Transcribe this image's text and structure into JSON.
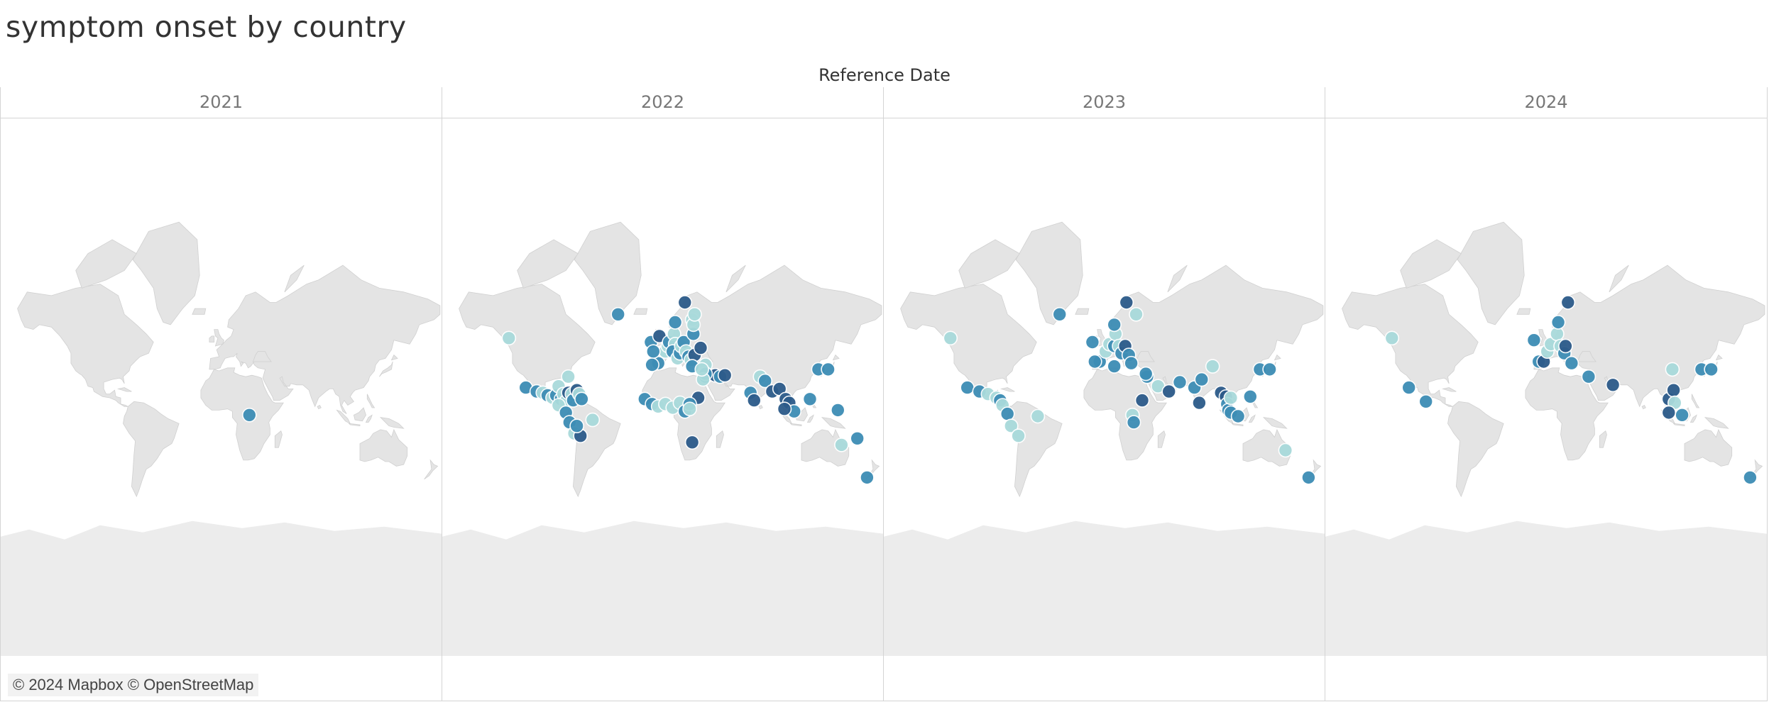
{
  "title": "symptom onset by country",
  "column_header": "Reference Date",
  "attribution": "© 2024 Mapbox © OpenStreetMap",
  "colors": {
    "land": "#e4e4e4",
    "ocean": "#ffffff",
    "antarctica": "#ececec",
    "marker_dark": "#2c5b8a",
    "marker_mid": "#3d8db5",
    "marker_light": "#a9dadb",
    "marker_stroke": "#ffffff"
  },
  "chart_data": {
    "type": "map",
    "projection": "mercator",
    "panels": [
      {
        "year": "2021",
        "points": [
          {
            "lon": 23,
            "lat": 1,
            "shade": "mid"
          }
        ]
      },
      {
        "year": "2022",
        "points": [
          {
            "lon": -127,
            "lat": 54,
            "shade": "light"
          },
          {
            "lon": -37,
            "lat": 64,
            "shade": "mid"
          },
          {
            "lon": -113,
            "lat": 23,
            "shade": "mid"
          },
          {
            "lon": -104,
            "lat": 20,
            "shade": "mid"
          },
          {
            "lon": -99,
            "lat": 19,
            "shade": "light"
          },
          {
            "lon": -95,
            "lat": 17,
            "shade": "mid"
          },
          {
            "lon": -91,
            "lat": 15,
            "shade": "light"
          },
          {
            "lon": -88,
            "lat": 17,
            "shade": "mid"
          },
          {
            "lon": -86,
            "lat": 24,
            "shade": "light"
          },
          {
            "lon": -84,
            "lat": 14,
            "shade": "mid"
          },
          {
            "lon": -82,
            "lat": 18,
            "shade": "light"
          },
          {
            "lon": -80,
            "lat": 12,
            "shade": "light"
          },
          {
            "lon": -78,
            "lat": 19,
            "shade": "dark"
          },
          {
            "lon": -75,
            "lat": 18,
            "shade": "light"
          },
          {
            "lon": -74,
            "lat": 13,
            "shade": "mid"
          },
          {
            "lon": -71,
            "lat": 21,
            "shade": "dark"
          },
          {
            "lon": -69,
            "lat": 18,
            "shade": "light"
          },
          {
            "lon": -67,
            "lat": 14,
            "shade": "mid"
          },
          {
            "lon": -78,
            "lat": 31,
            "shade": "light"
          },
          {
            "lon": -86,
            "lat": 9,
            "shade": "light"
          },
          {
            "lon": -80,
            "lat": 3,
            "shade": "mid"
          },
          {
            "lon": -77,
            "lat": -5,
            "shade": "mid"
          },
          {
            "lon": -73,
            "lat": -14,
            "shade": "light"
          },
          {
            "lon": -68,
            "lat": -16,
            "shade": "dark"
          },
          {
            "lon": -58,
            "lat": -3,
            "shade": "light"
          },
          {
            "lon": -71,
            "lat": -8,
            "shade": "mid"
          },
          {
            "lon": -10,
            "lat": 52,
            "shade": "mid"
          },
          {
            "lon": -3,
            "lat": 55,
            "shade": "dark"
          },
          {
            "lon": 2,
            "lat": 47,
            "shade": "light"
          },
          {
            "lon": -4,
            "lat": 40,
            "shade": "mid"
          },
          {
            "lon": -8,
            "lat": 47,
            "shade": "mid"
          },
          {
            "lon": -9,
            "lat": 39,
            "shade": "mid"
          },
          {
            "lon": 4,
            "lat": 50,
            "shade": "light"
          },
          {
            "lon": 5,
            "lat": 52,
            "shade": "mid"
          },
          {
            "lon": 9,
            "lat": 56,
            "shade": "light"
          },
          {
            "lon": 10,
            "lat": 51,
            "shade": "light"
          },
          {
            "lon": 8,
            "lat": 47,
            "shade": "mid"
          },
          {
            "lon": 12,
            "lat": 43,
            "shade": "light"
          },
          {
            "lon": 14,
            "lat": 46,
            "shade": "mid"
          },
          {
            "lon": 15,
            "lat": 50,
            "shade": "light"
          },
          {
            "lon": 17,
            "lat": 52,
            "shade": "mid"
          },
          {
            "lon": 19,
            "lat": 47,
            "shade": "light"
          },
          {
            "lon": 21,
            "lat": 44,
            "shade": "mid"
          },
          {
            "lon": 23,
            "lat": 42,
            "shade": "light"
          },
          {
            "lon": 26,
            "lat": 45,
            "shade": "dark"
          },
          {
            "lon": 24,
            "lat": 38,
            "shade": "mid"
          },
          {
            "lon": 25,
            "lat": 56,
            "shade": "mid"
          },
          {
            "lon": 24,
            "lat": 62,
            "shade": "light"
          },
          {
            "lon": 25,
            "lat": 60,
            "shade": "light"
          },
          {
            "lon": 26,
            "lat": 64,
            "shade": "light"
          },
          {
            "lon": 10,
            "lat": 61,
            "shade": "mid"
          },
          {
            "lon": 18,
            "lat": 68,
            "shade": "dark"
          },
          {
            "lon": 31,
            "lat": 49,
            "shade": "dark"
          },
          {
            "lon": 35,
            "lat": 39,
            "shade": "light"
          },
          {
            "lon": 35,
            "lat": 31,
            "shade": "mid"
          },
          {
            "lon": 43,
            "lat": 32,
            "shade": "dark"
          },
          {
            "lon": 47,
            "lat": 31,
            "shade": "mid"
          },
          {
            "lon": 51,
            "lat": 32,
            "shade": "dark"
          },
          {
            "lon": 35,
            "lat": 33,
            "shade": "mid"
          },
          {
            "lon": 33,
            "lat": 29,
            "shade": "light"
          },
          {
            "lon": 29,
            "lat": 15,
            "shade": "dark"
          },
          {
            "lon": 32,
            "lat": 36,
            "shade": "light"
          },
          {
            "lon": -15,
            "lat": 14,
            "shade": "mid"
          },
          {
            "lon": -9,
            "lat": 10,
            "shade": "mid"
          },
          {
            "lon": -4,
            "lat": 8,
            "shade": "light"
          },
          {
            "lon": 2,
            "lat": 10,
            "shade": "light"
          },
          {
            "lon": 8,
            "lat": 7,
            "shade": "light"
          },
          {
            "lon": 14,
            "lat": 11,
            "shade": "light"
          },
          {
            "lon": 18,
            "lat": 4,
            "shade": "mid"
          },
          {
            "lon": 22,
            "lat": 10,
            "shade": "mid"
          },
          {
            "lon": 22,
            "lat": 6,
            "shade": "light"
          },
          {
            "lon": 24,
            "lat": -21,
            "shade": "dark"
          },
          {
            "lon": 80,
            "lat": 31,
            "shade": "light"
          },
          {
            "lon": 84,
            "lat": 28,
            "shade": "mid"
          },
          {
            "lon": 72,
            "lat": 19,
            "shade": "mid"
          },
          {
            "lon": 75,
            "lat": 13,
            "shade": "dark"
          },
          {
            "lon": 90,
            "lat": 20,
            "shade": "dark"
          },
          {
            "lon": 96,
            "lat": 22,
            "shade": "dark"
          },
          {
            "lon": 101,
            "lat": 14,
            "shade": "dark"
          },
          {
            "lon": 104,
            "lat": 11,
            "shade": "dark"
          },
          {
            "lon": 108,
            "lat": 4,
            "shade": "mid"
          },
          {
            "lon": 100,
            "lat": 6,
            "shade": "dark"
          },
          {
            "lon": 121,
            "lat": 14,
            "shade": "mid"
          },
          {
            "lon": 128,
            "lat": 36,
            "shade": "mid"
          },
          {
            "lon": 136,
            "lat": 36,
            "shade": "mid"
          },
          {
            "lon": 144,
            "lat": 5,
            "shade": "mid"
          },
          {
            "lon": 147,
            "lat": -23,
            "shade": "light"
          },
          {
            "lon": 160,
            "lat": -18,
            "shade": "mid"
          },
          {
            "lon": 168,
            "lat": -45,
            "shade": "mid"
          }
        ]
      },
      {
        "year": "2023",
        "points": [
          {
            "lon": -127,
            "lat": 54,
            "shade": "light"
          },
          {
            "lon": -37,
            "lat": 64,
            "shade": "mid"
          },
          {
            "lon": -113,
            "lat": 23,
            "shade": "mid"
          },
          {
            "lon": -103,
            "lat": 20,
            "shade": "mid"
          },
          {
            "lon": -96,
            "lat": 18,
            "shade": "light"
          },
          {
            "lon": -89,
            "lat": 15,
            "shade": "light"
          },
          {
            "lon": -86,
            "lat": 13,
            "shade": "mid"
          },
          {
            "lon": -84,
            "lat": 9,
            "shade": "light"
          },
          {
            "lon": -80,
            "lat": 2,
            "shade": "mid"
          },
          {
            "lon": -77,
            "lat": -8,
            "shade": "light"
          },
          {
            "lon": -71,
            "lat": -16,
            "shade": "light"
          },
          {
            "lon": -55,
            "lat": 0,
            "shade": "light"
          },
          {
            "lon": -10,
            "lat": 52,
            "shade": "mid"
          },
          {
            "lon": -4,
            "lat": 41,
            "shade": "mid"
          },
          {
            "lon": -8,
            "lat": 41,
            "shade": "mid"
          },
          {
            "lon": 1,
            "lat": 47,
            "shade": "light"
          },
          {
            "lon": 4,
            "lat": 51,
            "shade": "light"
          },
          {
            "lon": 8,
            "lat": 50,
            "shade": "mid"
          },
          {
            "lon": 9,
            "lat": 56,
            "shade": "light"
          },
          {
            "lon": 12,
            "lat": 50,
            "shade": "light"
          },
          {
            "lon": 14,
            "lat": 46,
            "shade": "mid"
          },
          {
            "lon": 17,
            "lat": 50,
            "shade": "dark"
          },
          {
            "lon": 20,
            "lat": 45,
            "shade": "mid"
          },
          {
            "lon": 22,
            "lat": 40,
            "shade": "mid"
          },
          {
            "lon": 8,
            "lat": 38,
            "shade": "mid"
          },
          {
            "lon": 8,
            "lat": 60,
            "shade": "mid"
          },
          {
            "lon": 18,
            "lat": 68,
            "shade": "dark"
          },
          {
            "lon": 26,
            "lat": 64,
            "shade": "light"
          },
          {
            "lon": 35,
            "lat": 31,
            "shade": "mid"
          },
          {
            "lon": 34,
            "lat": 33,
            "shade": "mid"
          },
          {
            "lon": 44,
            "lat": 24,
            "shade": "light"
          },
          {
            "lon": 53,
            "lat": 20,
            "shade": "dark"
          },
          {
            "lon": 31,
            "lat": 13,
            "shade": "dark"
          },
          {
            "lon": 23,
            "lat": 1,
            "shade": "light"
          },
          {
            "lon": 24,
            "lat": -5,
            "shade": "mid"
          },
          {
            "lon": 62,
            "lat": 27,
            "shade": "mid"
          },
          {
            "lon": 74,
            "lat": 23,
            "shade": "mid"
          },
          {
            "lon": 80,
            "lat": 29,
            "shade": "mid"
          },
          {
            "lon": 78,
            "lat": 11,
            "shade": "dark"
          },
          {
            "lon": 89,
            "lat": 38,
            "shade": "light"
          },
          {
            "lon": 96,
            "lat": 19,
            "shade": "dark"
          },
          {
            "lon": 100,
            "lat": 16,
            "shade": "dark"
          },
          {
            "lon": 101,
            "lat": 10,
            "shade": "mid"
          },
          {
            "lon": 102,
            "lat": 5,
            "shade": "mid"
          },
          {
            "lon": 104,
            "lat": 15,
            "shade": "light"
          },
          {
            "lon": 104,
            "lat": 3,
            "shade": "mid"
          },
          {
            "lon": 110,
            "lat": 0,
            "shade": "mid"
          },
          {
            "lon": 120,
            "lat": 16,
            "shade": "mid"
          },
          {
            "lon": 128,
            "lat": 36,
            "shade": "mid"
          },
          {
            "lon": 136,
            "lat": 36,
            "shade": "mid"
          },
          {
            "lon": 149,
            "lat": -27,
            "shade": "light"
          },
          {
            "lon": 168,
            "lat": -45,
            "shade": "mid"
          }
        ]
      },
      {
        "year": "2024",
        "points": [
          {
            "lon": -127,
            "lat": 54,
            "shade": "light"
          },
          {
            "lon": -113,
            "lat": 23,
            "shade": "mid"
          },
          {
            "lon": -99,
            "lat": 12,
            "shade": "mid"
          },
          {
            "lon": -10,
            "lat": 53,
            "shade": "mid"
          },
          {
            "lon": -6,
            "lat": 41,
            "shade": "mid"
          },
          {
            "lon": -2,
            "lat": 41,
            "shade": "dark"
          },
          {
            "lon": 1,
            "lat": 47,
            "shade": "light"
          },
          {
            "lon": 4,
            "lat": 51,
            "shade": "light"
          },
          {
            "lon": 9,
            "lat": 56,
            "shade": "light"
          },
          {
            "lon": 12,
            "lat": 50,
            "shade": "light"
          },
          {
            "lon": 15,
            "lat": 46,
            "shade": "mid"
          },
          {
            "lon": 16,
            "lat": 50,
            "shade": "dark"
          },
          {
            "lon": 18,
            "lat": 68,
            "shade": "dark"
          },
          {
            "lon": 10,
            "lat": 61,
            "shade": "mid"
          },
          {
            "lon": 21,
            "lat": 40,
            "shade": "mid"
          },
          {
            "lon": 35,
            "lat": 31,
            "shade": "mid"
          },
          {
            "lon": 55,
            "lat": 25,
            "shade": "dark"
          },
          {
            "lon": 104,
            "lat": 36,
            "shade": "light"
          },
          {
            "lon": 101,
            "lat": 14,
            "shade": "dark"
          },
          {
            "lon": 105,
            "lat": 21,
            "shade": "dark"
          },
          {
            "lon": 106,
            "lat": 11,
            "shade": "light"
          },
          {
            "lon": 101,
            "lat": 3,
            "shade": "dark"
          },
          {
            "lon": 112,
            "lat": 1,
            "shade": "mid"
          },
          {
            "lon": 128,
            "lat": 36,
            "shade": "mid"
          },
          {
            "lon": 136,
            "lat": 36,
            "shade": "mid"
          },
          {
            "lon": 168,
            "lat": -45,
            "shade": "mid"
          }
        ]
      }
    ]
  }
}
